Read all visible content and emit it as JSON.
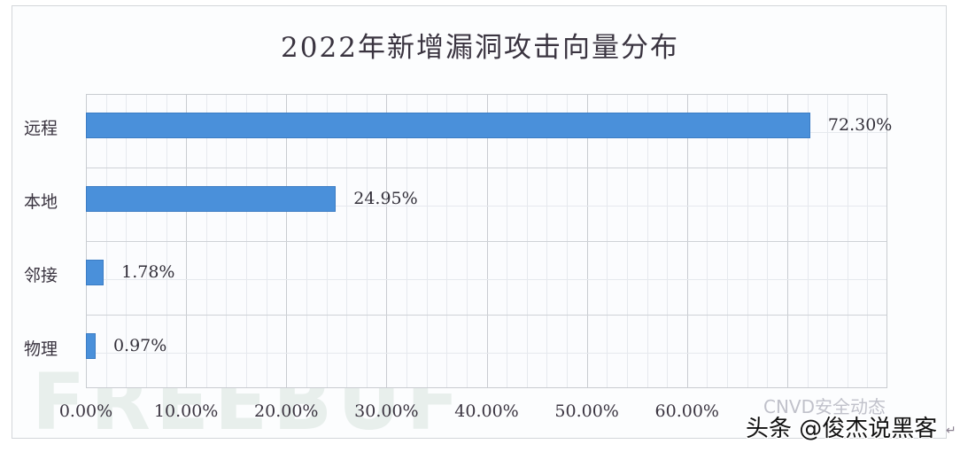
{
  "chart_data": {
    "type": "bar",
    "orientation": "horizontal",
    "title": "2022年新增漏洞攻击向量分布",
    "categories": [
      "远程",
      "本地",
      "邻接",
      "物理"
    ],
    "values": [
      72.3,
      24.95,
      1.78,
      0.97
    ],
    "value_labels": [
      "72.30%",
      "24.95%",
      "1.78%",
      "0.97%"
    ],
    "xlabel": "",
    "ylabel": "",
    "xlim": [
      0,
      80
    ],
    "x_ticks": [
      "0.00%",
      "10.00%",
      "20.00%",
      "30.00%",
      "40.00%",
      "50.00%",
      "60.00%"
    ],
    "grid": true,
    "legend": null,
    "bar_color": "#4a90da"
  },
  "watermarks": {
    "freebuf": "FREEBUF",
    "cnvd": "CNVD安全动态",
    "toutiao": "头条 @俊杰说黑客",
    "return_glyph": "↵"
  }
}
